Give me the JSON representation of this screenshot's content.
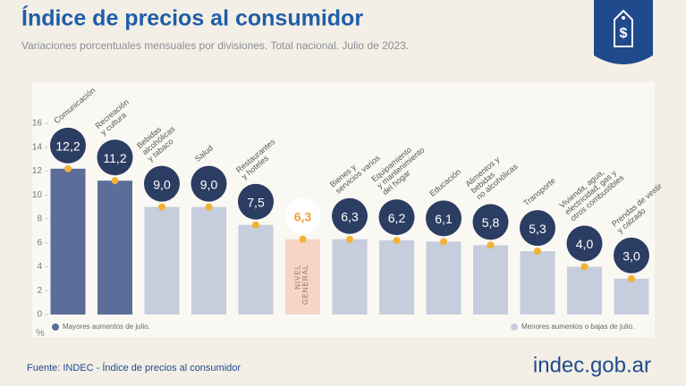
{
  "chart_data": {
    "type": "bar",
    "title": "Índice de precios al consumidor",
    "subtitle": "Variaciones porcentuales mensuales por divisiones. Total nacional. Julio de 2023.",
    "categories": [
      "Comunicación",
      "Recreación\ny cultura",
      "Bebidas\nalcohólicas\ny tabaco",
      "Salud",
      "Restaurantes\ny hoteles",
      "NIVEL\nGENERAL",
      "Bienes y\nservicios varios",
      "Equipamiento\ny mantenimiento\ndel hogar",
      "Educación",
      "Alimentos y\nbebidas\nno alcohólicas",
      "Transporte",
      "Vivienda, agua,\nelectricidad, gas y\notros combustibles",
      "Prendas de vestir\ny calzado"
    ],
    "values": [
      12.2,
      11.2,
      9.0,
      9.0,
      7.5,
      6.3,
      6.3,
      6.2,
      6.1,
      5.8,
      5.3,
      4.0,
      3.0
    ],
    "value_labels": [
      "12,2",
      "11,2",
      "9,0",
      "9,0",
      "7,5",
      "6,3",
      "6,3",
      "6,2",
      "6,1",
      "5,8",
      "5,3",
      "4,0",
      "3,0"
    ],
    "colors": [
      "#5b6d98",
      "#5b6d98",
      "#c6cddc",
      "#c6cddc",
      "#c6cddc",
      "#f7d5c5",
      "#c6cddc",
      "#c6cddc",
      "#c6cddc",
      "#c6cddc",
      "#c6cddc",
      "#c6cddc",
      "#c6cddc"
    ],
    "label_inside": [
      5
    ],
    "ylim": [
      0,
      16
    ],
    "yticks": [
      0,
      2,
      4,
      6,
      8,
      10,
      12,
      14,
      16
    ],
    "y_unit": "%",
    "legend": [
      {
        "name": "Mayores aumentos de julio.",
        "color": "#5b6d98"
      },
      {
        "name": "Menores aumentos o bajas de julio.",
        "color": "#c6cddc"
      }
    ],
    "source": "Fuente: INDEC - Índice de precios al consumidor",
    "brand": "indec.gob.ar"
  }
}
